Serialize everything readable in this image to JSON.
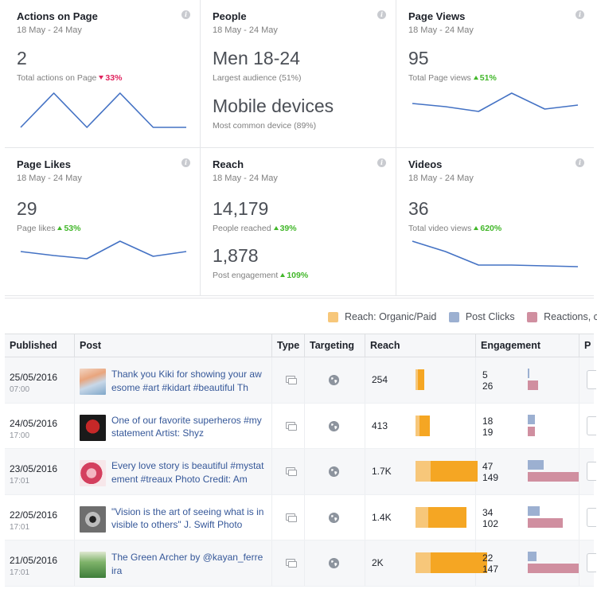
{
  "colors": {
    "line": "#4472c4",
    "organic": "#f7c77a",
    "paid": "#f5a623",
    "clicks": "#9cb0d1",
    "reactions": "#d08fa0",
    "positive": "#42b72a",
    "negative": "#e0245e",
    "link": "#365899"
  },
  "cards": [
    {
      "title": "Actions on Page",
      "date": "18 May - 24 May",
      "value": "2",
      "sub_label": "Total actions on Page",
      "change": "33%",
      "direction": "down",
      "trend": [
        0.12,
        0.55,
        0.12,
        0.55,
        0.12,
        0.12
      ]
    },
    {
      "title": "People",
      "date": "18 May - 24 May",
      "value": "Men 18-24",
      "sub_label": "Largest audience (51%)",
      "value2": "Mobile devices",
      "sub_label2": "Most common device (89%)"
    },
    {
      "title": "Page Views",
      "date": "18 May - 24 May",
      "value": "95",
      "sub_label": "Total Page views",
      "change": "51%",
      "direction": "up",
      "trend": [
        0.42,
        0.38,
        0.32,
        0.55,
        0.35,
        0.4
      ]
    },
    {
      "title": "Page Likes",
      "date": "18 May - 24 May",
      "value": "29",
      "sub_label": "Page likes",
      "change": "53%",
      "direction": "up",
      "trend": [
        0.42,
        0.37,
        0.33,
        0.55,
        0.36,
        0.42
      ]
    },
    {
      "title": "Reach",
      "date": "18 May - 24 May",
      "value": "14,179",
      "sub_label": "People reached",
      "change": "39%",
      "direction": "up",
      "value2": "1,878",
      "sub_label2": "Post engagement",
      "change2": "109%",
      "direction2": "up"
    },
    {
      "title": "Videos",
      "date": "18 May - 24 May",
      "value": "36",
      "sub_label": "Total video views",
      "change": "620%",
      "direction": "up",
      "trend": [
        0.55,
        0.42,
        0.25,
        0.25,
        0.24,
        0.23
      ]
    }
  ],
  "legend": [
    {
      "label": "Reach: Organic/Paid",
      "color": "#f7c77a"
    },
    {
      "label": "Post Clicks",
      "color": "#9cb0d1"
    },
    {
      "label": "Reactions, co",
      "color": "#d08fa0"
    }
  ],
  "table": {
    "headers": {
      "published": "Published",
      "post": "Post",
      "type": "Type",
      "targeting": "Targeting",
      "reach": "Reach",
      "engagement": "Engagement",
      "more": "P"
    },
    "rows": [
      {
        "date": "25/05/2016",
        "time": "07:00",
        "text": "Thank you Kiki for showing your awesome #art #kidart #beautiful Th",
        "thumb": "kid-art",
        "reach": "254",
        "reach_organic": 0.02,
        "reach_paid": 0.05,
        "clicks": "5",
        "reactions": "26",
        "clicks_bar": 0.01,
        "reactions_bar": 0.06
      },
      {
        "date": "24/05/2016",
        "time": "17:00",
        "text": "One of our favorite superheros #mystatement Artist: Shyz",
        "thumb": "superhero",
        "reach": "413",
        "reach_organic": 0.03,
        "reach_paid": 0.08,
        "clicks": "18",
        "reactions": "19",
        "clicks_bar": 0.04,
        "reactions_bar": 0.04
      },
      {
        "date": "23/05/2016",
        "time": "17:01",
        "text": "Every love story is beautiful #mystatement #treaux Photo Credit: Am",
        "thumb": "love-story",
        "reach": "1.7K",
        "reach_organic": 0.12,
        "reach_paid": 0.37,
        "clicks": "47",
        "reactions": "149",
        "clicks_bar": 0.09,
        "reactions_bar": 0.29
      },
      {
        "date": "22/05/2016",
        "time": "17:01",
        "text": "\"Vision is the art of seeing what is invisible to others\" J. Swift Photo",
        "thumb": "eye",
        "reach": "1.4K",
        "reach_organic": 0.1,
        "reach_paid": 0.3,
        "clicks": "34",
        "reactions": "102",
        "clicks_bar": 0.07,
        "reactions_bar": 0.2
      },
      {
        "date": "21/05/2016",
        "time": "17:01",
        "text": "The Green Archer by @kayan_ferreira",
        "thumb": "green-archer",
        "reach": "2K",
        "reach_organic": 0.12,
        "reach_paid": 0.44,
        "clicks": "22",
        "reactions": "147",
        "clicks_bar": 0.05,
        "reactions_bar": 0.29
      }
    ]
  }
}
